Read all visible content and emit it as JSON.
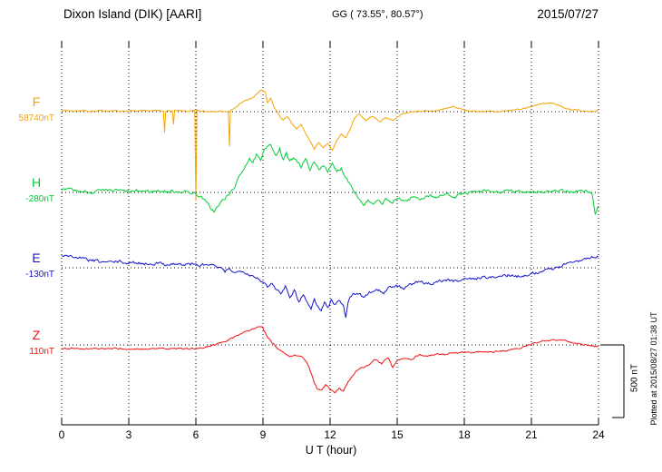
{
  "header": {
    "station": "Dixon Island (DIK)  [AARI]",
    "coords": "GG ( 73.55°,  80.57°)",
    "date": "2015/07/27"
  },
  "x_axis": {
    "label": "U T (hour)"
  },
  "side": {
    "scale_label": "500 nT",
    "plotted_label": "Plotted at 2015/08/27 01:38 UT"
  },
  "chart_data": {
    "type": "line",
    "title": "Dixon Island (DIK) [AARI] magnetogram",
    "subtitle": "GG ( 73.55°,  80.57°)",
    "date": "2015/07/27",
    "xlabel": "U T (hour)",
    "x_range": [
      0,
      24
    ],
    "x_ticks": [
      0,
      3,
      6,
      9,
      12,
      15,
      18,
      21,
      24
    ],
    "grid": "dotted",
    "units": "nT",
    "scale_bar_nT": 500,
    "channels": [
      {
        "id": "F",
        "label": "F",
        "baseline_label": "58740nT",
        "baseline_nT": 58740,
        "color": "#f5a300",
        "noise_nT": 4,
        "keypoints": [
          [
            0,
            10
          ],
          [
            0.5,
            5
          ],
          [
            1,
            8
          ],
          [
            1.5,
            2
          ],
          [
            2,
            8
          ],
          [
            2.5,
            4
          ],
          [
            3,
            6
          ],
          [
            3.5,
            2
          ],
          [
            4,
            6
          ],
          [
            4.55,
            5
          ],
          [
            4.6,
            -140
          ],
          [
            4.65,
            5
          ],
          [
            4.95,
            5
          ],
          [
            5,
            -90
          ],
          [
            5.05,
            5
          ],
          [
            5.5,
            3
          ],
          [
            5.95,
            5
          ],
          [
            6,
            -620
          ],
          [
            6.05,
            5
          ],
          [
            6.5,
            0
          ],
          [
            7,
            5
          ],
          [
            7.45,
            0
          ],
          [
            7.5,
            -240
          ],
          [
            7.55,
            5
          ],
          [
            7.8,
            30
          ],
          [
            8,
            60
          ],
          [
            8.3,
            80
          ],
          [
            8.6,
            100
          ],
          [
            8.9,
            150
          ],
          [
            9.1,
            130
          ],
          [
            9.2,
            60
          ],
          [
            9.35,
            90
          ],
          [
            9.5,
            30
          ],
          [
            9.7,
            -20
          ],
          [
            9.9,
            -60
          ],
          [
            10.1,
            -30
          ],
          [
            10.3,
            -90
          ],
          [
            10.5,
            -120
          ],
          [
            10.7,
            -90
          ],
          [
            10.9,
            -150
          ],
          [
            11.1,
            -200
          ],
          [
            11.3,
            -260
          ],
          [
            11.5,
            -210
          ],
          [
            11.7,
            -250
          ],
          [
            11.9,
            -220
          ],
          [
            12.1,
            -270
          ],
          [
            12.3,
            -200
          ],
          [
            12.5,
            -150
          ],
          [
            12.7,
            -180
          ],
          [
            12.9,
            -120
          ],
          [
            13.1,
            -40
          ],
          [
            13.3,
            -15
          ],
          [
            13.6,
            -60
          ],
          [
            13.9,
            -30
          ],
          [
            14.2,
            -70
          ],
          [
            14.5,
            -40
          ],
          [
            14.8,
            -60
          ],
          [
            15.1,
            -25
          ],
          [
            15.5,
            -5
          ],
          [
            16,
            5
          ],
          [
            16.5,
            0
          ],
          [
            17,
            15
          ],
          [
            17.5,
            35
          ],
          [
            18,
            10
          ],
          [
            18.5,
            0
          ],
          [
            19,
            5
          ],
          [
            19.5,
            0
          ],
          [
            20,
            5
          ],
          [
            20.5,
            15
          ],
          [
            21,
            35
          ],
          [
            21.5,
            60
          ],
          [
            22,
            55
          ],
          [
            22.5,
            25
          ],
          [
            23,
            10
          ],
          [
            23.5,
            5
          ],
          [
            24,
            5
          ]
        ]
      },
      {
        "id": "H",
        "label": "H",
        "baseline_label": "-280nT",
        "baseline_nT": -280,
        "color": "#00cc33",
        "noise_nT": 10,
        "keypoints": [
          [
            0,
            10
          ],
          [
            0.4,
            18
          ],
          [
            0.8,
            8
          ],
          [
            1.2,
            2
          ],
          [
            1.6,
            10
          ],
          [
            2,
            6
          ],
          [
            2.4,
            14
          ],
          [
            2.8,
            8
          ],
          [
            3.2,
            4
          ],
          [
            3.6,
            10
          ],
          [
            4,
            6
          ],
          [
            4.4,
            12
          ],
          [
            4.8,
            4
          ],
          [
            5.2,
            10
          ],
          [
            5.6,
            2
          ],
          [
            6,
            -8
          ],
          [
            6.3,
            -40
          ],
          [
            6.6,
            -95
          ],
          [
            6.8,
            -130
          ],
          [
            7,
            -95
          ],
          [
            7.2,
            -55
          ],
          [
            7.5,
            -15
          ],
          [
            7.8,
            60
          ],
          [
            8,
            120
          ],
          [
            8.2,
            185
          ],
          [
            8.4,
            240
          ],
          [
            8.55,
            195
          ],
          [
            8.7,
            255
          ],
          [
            8.9,
            215
          ],
          [
            9.1,
            300
          ],
          [
            9.3,
            345
          ],
          [
            9.45,
            300
          ],
          [
            9.6,
            250
          ],
          [
            9.75,
            295
          ],
          [
            9.9,
            225
          ],
          [
            10.05,
            265
          ],
          [
            10.2,
            205
          ],
          [
            10.35,
            240
          ],
          [
            10.5,
            230
          ],
          [
            10.7,
            180
          ],
          [
            10.9,
            225
          ],
          [
            11.1,
            165
          ],
          [
            11.3,
            205
          ],
          [
            11.5,
            155
          ],
          [
            11.7,
            195
          ],
          [
            11.9,
            150
          ],
          [
            12.1,
            190
          ],
          [
            12.3,
            140
          ],
          [
            12.5,
            165
          ],
          [
            12.7,
            110
          ],
          [
            12.9,
            60
          ],
          [
            13.1,
            10
          ],
          [
            13.3,
            -45
          ],
          [
            13.5,
            -85
          ],
          [
            13.7,
            -55
          ],
          [
            13.9,
            -90
          ],
          [
            14.1,
            -60
          ],
          [
            14.3,
            -80
          ],
          [
            14.5,
            -50
          ],
          [
            14.8,
            -70
          ],
          [
            15.1,
            -40
          ],
          [
            15.4,
            -60
          ],
          [
            15.7,
            -30
          ],
          [
            16,
            -45
          ],
          [
            16.4,
            -20
          ],
          [
            16.8,
            -35
          ],
          [
            17.2,
            -10
          ],
          [
            17.6,
            -25
          ],
          [
            18,
            -5
          ],
          [
            18.5,
            0
          ],
          [
            19,
            8
          ],
          [
            19.5,
            2
          ],
          [
            20,
            8
          ],
          [
            20.5,
            2
          ],
          [
            21,
            10
          ],
          [
            21.5,
            4
          ],
          [
            22,
            8
          ],
          [
            22.5,
            4
          ],
          [
            23,
            10
          ],
          [
            23.4,
            6
          ],
          [
            23.7,
            0
          ],
          [
            23.85,
            -150
          ],
          [
            24,
            -90
          ]
        ]
      },
      {
        "id": "E",
        "label": "E",
        "baseline_label": "-130nT",
        "baseline_nT": -130,
        "color": "#1414cc",
        "noise_nT": 9,
        "keypoints": [
          [
            0,
            90
          ],
          [
            0.3,
            82
          ],
          [
            0.6,
            72
          ],
          [
            1,
            60
          ],
          [
            1.4,
            48
          ],
          [
            1.8,
            40
          ],
          [
            2.2,
            38
          ],
          [
            2.6,
            42
          ],
          [
            3,
            30
          ],
          [
            3.4,
            36
          ],
          [
            3.8,
            26
          ],
          [
            4.2,
            32
          ],
          [
            4.6,
            24
          ],
          [
            5,
            28
          ],
          [
            5.4,
            20
          ],
          [
            5.8,
            26
          ],
          [
            6.2,
            16
          ],
          [
            6.6,
            22
          ],
          [
            7,
            2
          ],
          [
            7.3,
            -28
          ],
          [
            7.5,
            -8
          ],
          [
            7.8,
            -35
          ],
          [
            8.1,
            -18
          ],
          [
            8.4,
            -45
          ],
          [
            8.7,
            -65
          ],
          [
            9,
            -95
          ],
          [
            9.2,
            -140
          ],
          [
            9.4,
            -105
          ],
          [
            9.6,
            -150
          ],
          [
            9.8,
            -170
          ],
          [
            10,
            -125
          ],
          [
            10.2,
            -195
          ],
          [
            10.4,
            -155
          ],
          [
            10.6,
            -230
          ],
          [
            10.8,
            -185
          ],
          [
            11,
            -240
          ],
          [
            11.15,
            -285
          ],
          [
            11.3,
            -215
          ],
          [
            11.45,
            -265
          ],
          [
            11.6,
            -300
          ],
          [
            11.75,
            -235
          ],
          [
            11.9,
            -275
          ],
          [
            12.05,
            -225
          ],
          [
            12.2,
            -255
          ],
          [
            12.4,
            -225
          ],
          [
            12.6,
            -255
          ],
          [
            12.7,
            -340
          ],
          [
            12.8,
            -230
          ],
          [
            13,
            -185
          ],
          [
            13.2,
            -175
          ],
          [
            13.5,
            -200
          ],
          [
            13.8,
            -165
          ],
          [
            14.1,
            -150
          ],
          [
            14.4,
            -170
          ],
          [
            14.7,
            -135
          ],
          [
            15,
            -125
          ],
          [
            15.3,
            -140
          ],
          [
            15.6,
            -115
          ],
          [
            16,
            -100
          ],
          [
            16.4,
            -112
          ],
          [
            16.8,
            -92
          ],
          [
            17.2,
            -85
          ],
          [
            17.6,
            -92
          ],
          [
            18,
            -72
          ],
          [
            18.4,
            -80
          ],
          [
            18.8,
            -62
          ],
          [
            19.2,
            -70
          ],
          [
            19.6,
            -58
          ],
          [
            20,
            -52
          ],
          [
            20.4,
            -58
          ],
          [
            20.8,
            -45
          ],
          [
            21.2,
            -35
          ],
          [
            21.6,
            -18
          ],
          [
            22,
            -2
          ],
          [
            22.4,
            18
          ],
          [
            22.8,
            38
          ],
          [
            23.2,
            55
          ],
          [
            23.6,
            68
          ],
          [
            24,
            85
          ]
        ]
      },
      {
        "id": "Z",
        "label": "Z",
        "baseline_label": "110nT",
        "baseline_nT": 110,
        "color": "#ee1111",
        "noise_nT": 5,
        "keypoints": [
          [
            0,
            -28
          ],
          [
            0.5,
            -24
          ],
          [
            1,
            -30
          ],
          [
            1.5,
            -24
          ],
          [
            2,
            -28
          ],
          [
            2.5,
            -24
          ],
          [
            3,
            -28
          ],
          [
            3.5,
            -30
          ],
          [
            4,
            -25
          ],
          [
            4.5,
            -28
          ],
          [
            5,
            -24
          ],
          [
            5.5,
            -28
          ],
          [
            6,
            -24
          ],
          [
            6.5,
            -12
          ],
          [
            7,
            8
          ],
          [
            7.5,
            38
          ],
          [
            8,
            78
          ],
          [
            8.4,
            105
          ],
          [
            8.8,
            128
          ],
          [
            9,
            118
          ],
          [
            9.2,
            58
          ],
          [
            9.4,
            18
          ],
          [
            9.6,
            -18
          ],
          [
            9.8,
            -38
          ],
          [
            10,
            -58
          ],
          [
            10.2,
            -75
          ],
          [
            10.4,
            -65
          ],
          [
            10.6,
            -78
          ],
          [
            10.8,
            -88
          ],
          [
            11,
            -128
          ],
          [
            11.2,
            -218
          ],
          [
            11.4,
            -298
          ],
          [
            11.6,
            -318
          ],
          [
            11.8,
            -278
          ],
          [
            12,
            -308
          ],
          [
            12.2,
            -328
          ],
          [
            12.4,
            -298
          ],
          [
            12.6,
            -318
          ],
          [
            12.8,
            -258
          ],
          [
            13,
            -218
          ],
          [
            13.2,
            -178
          ],
          [
            13.4,
            -155
          ],
          [
            13.7,
            -138
          ],
          [
            14,
            -98
          ],
          [
            14.3,
            -128
          ],
          [
            14.6,
            -88
          ],
          [
            14.8,
            -158
          ],
          [
            15,
            -108
          ],
          [
            15.3,
            -88
          ],
          [
            15.6,
            -98
          ],
          [
            16,
            -68
          ],
          [
            16.4,
            -78
          ],
          [
            16.8,
            -58
          ],
          [
            17.2,
            -64
          ],
          [
            17.6,
            -55
          ],
          [
            18,
            -48
          ],
          [
            18.4,
            -54
          ],
          [
            18.8,
            -44
          ],
          [
            19.2,
            -48
          ],
          [
            19.6,
            -42
          ],
          [
            20,
            -38
          ],
          [
            20.5,
            -18
          ],
          [
            21,
            8
          ],
          [
            21.5,
            28
          ],
          [
            22,
            38
          ],
          [
            22.5,
            28
          ],
          [
            23,
            8
          ],
          [
            23.5,
            -2
          ],
          [
            24,
            -8
          ]
        ]
      }
    ]
  }
}
